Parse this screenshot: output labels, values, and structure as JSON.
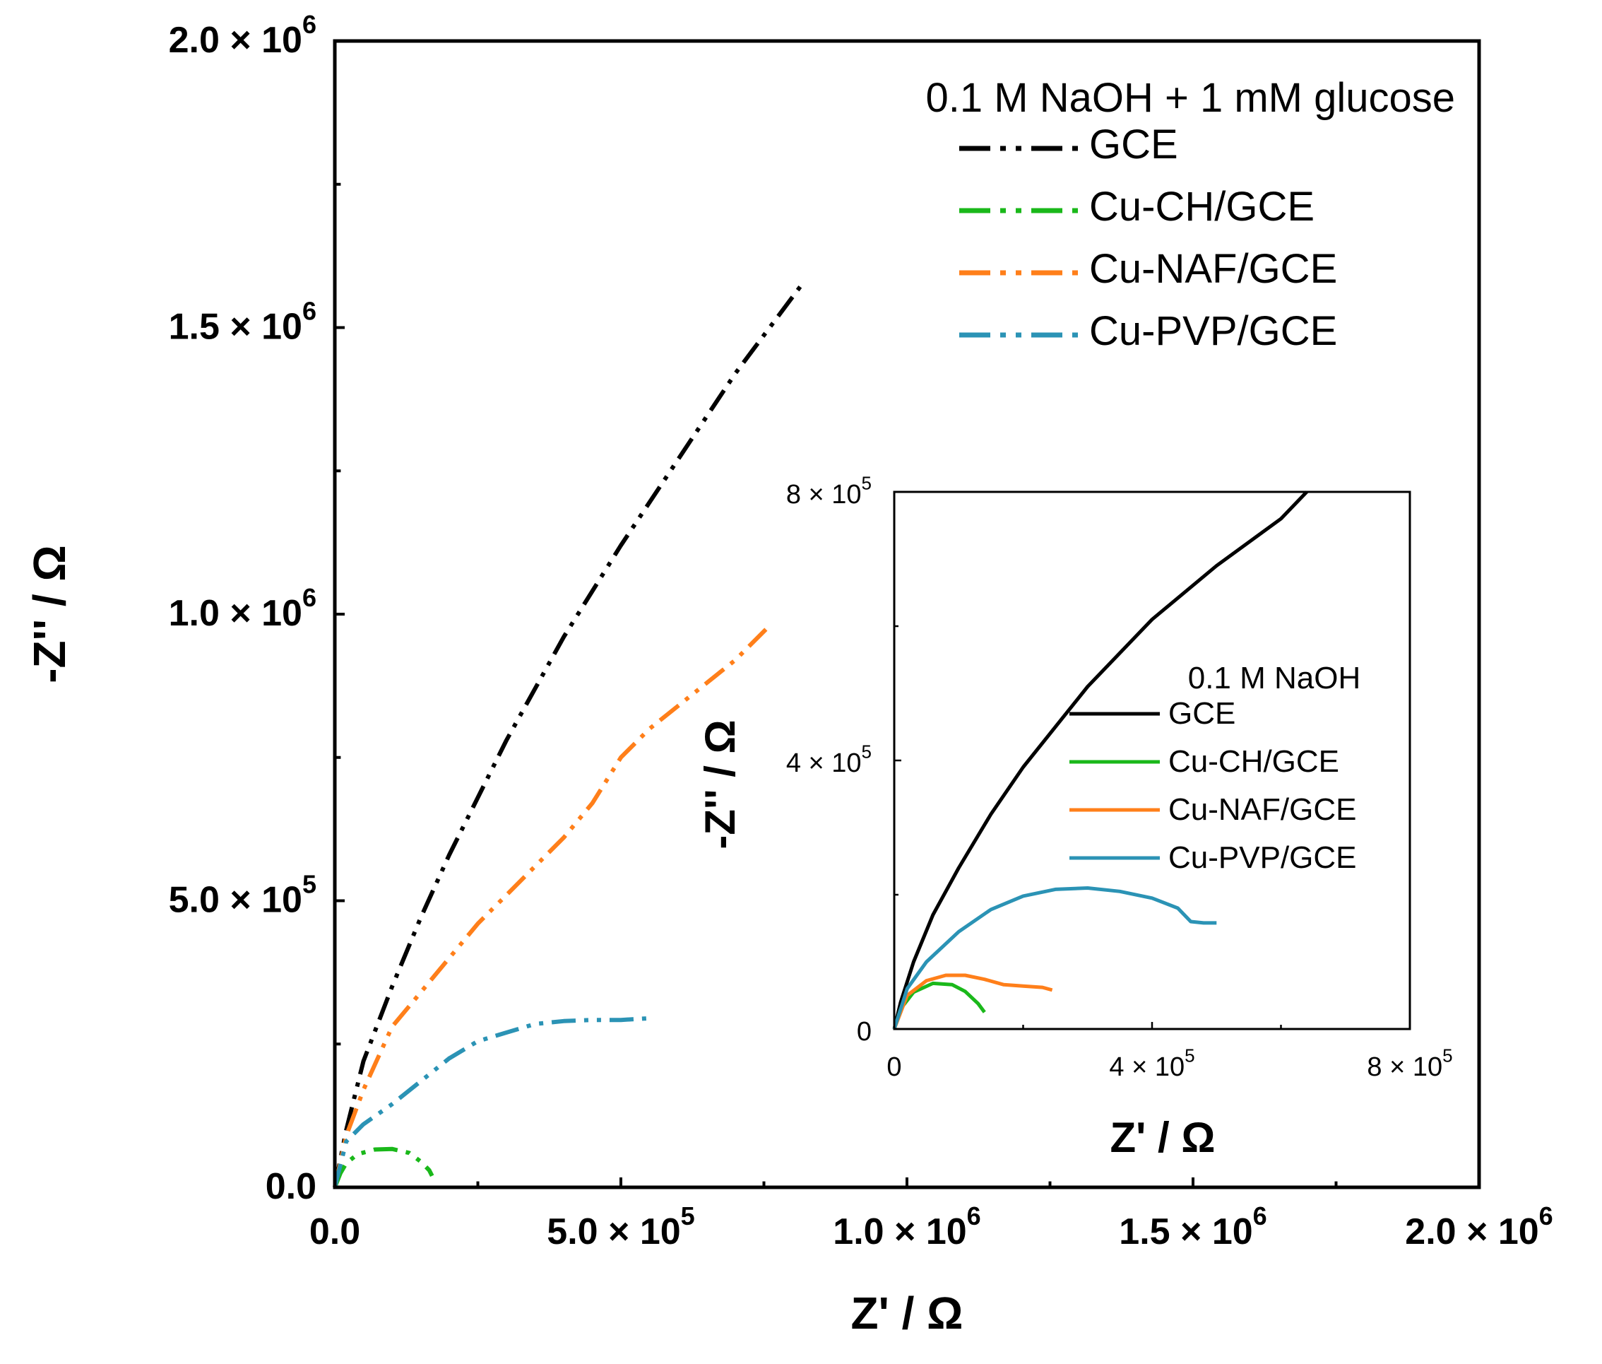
{
  "chart_data": [
    {
      "id": "main",
      "type": "line",
      "title": "",
      "xlabel": "Z' / Ω",
      "ylabel": "-Z'' / Ω",
      "xlim": [
        0,
        2000000
      ],
      "ylim": [
        0,
        2000000
      ],
      "x_ticks": [
        {
          "value": 0,
          "label": "0.0"
        },
        {
          "value": 500000,
          "label": "5.0 × 10",
          "exp": "5"
        },
        {
          "value": 1000000,
          "label": "1.0 × 10",
          "exp": "6"
        },
        {
          "value": 1500000,
          "label": "1.5 × 10",
          "exp": "6"
        },
        {
          "value": 2000000,
          "label": "2.0 × 10",
          "exp": "6"
        }
      ],
      "y_ticks": [
        {
          "value": 0,
          "label": "0.0"
        },
        {
          "value": 500000,
          "label": "5.0 × 10",
          "exp": "5"
        },
        {
          "value": 1000000,
          "label": "1.0 × 10",
          "exp": "6"
        },
        {
          "value": 1500000,
          "label": "1.5 × 10",
          "exp": "6"
        },
        {
          "value": 2000000,
          "label": "2.0 × 10",
          "exp": "6"
        }
      ],
      "legend_title": "0.1 M NaOH + 1 mM glucose",
      "legend_position": "top-right",
      "line_style": "dash-dot-dot",
      "series": [
        {
          "name": "GCE",
          "color": "#000000",
          "x": [
            0,
            20000,
            50000,
            100000,
            150000,
            200000,
            300000,
            400000,
            500000,
            600000,
            700000,
            820000
          ],
          "y": [
            0,
            100000,
            220000,
            350000,
            470000,
            580000,
            780000,
            960000,
            1120000,
            1270000,
            1420000,
            1580000
          ]
        },
        {
          "name": "Cu-CH/GCE",
          "color": "#1ab81a",
          "x": [
            0,
            10000,
            20000,
            40000,
            70000,
            100000,
            130000,
            150000,
            165000,
            170000
          ],
          "y": [
            0,
            25000,
            42000,
            58000,
            66000,
            67000,
            60000,
            45000,
            30000,
            20000
          ]
        },
        {
          "name": "Cu-NAF/GCE",
          "color": "#ff7f1a",
          "x": [
            0,
            20000,
            50000,
            100000,
            150000,
            200000,
            250000,
            300000,
            350000,
            400000,
            450000,
            500000,
            550000,
            600000,
            650000,
            700000,
            760000
          ],
          "y": [
            0,
            90000,
            170000,
            280000,
            340000,
            400000,
            460000,
            510000,
            560000,
            610000,
            670000,
            750000,
            800000,
            840000,
            880000,
            920000,
            980000
          ]
        },
        {
          "name": "Cu-PVP/GCE",
          "color": "#2b93b5",
          "x": [
            0,
            20000,
            50000,
            100000,
            150000,
            200000,
            250000,
            300000,
            350000,
            400000,
            450000,
            500000,
            550000
          ],
          "y": [
            0,
            80000,
            110000,
            145000,
            185000,
            225000,
            255000,
            270000,
            285000,
            290000,
            292000,
            292000,
            295000
          ]
        }
      ]
    },
    {
      "id": "inset",
      "type": "line",
      "title": "",
      "xlabel": "Z' / Ω",
      "ylabel": "-Z'' / Ω",
      "xlim": [
        0,
        800000
      ],
      "ylim": [
        0,
        800000
      ],
      "x_ticks": [
        {
          "value": 0,
          "label": "0"
        },
        {
          "value": 400000,
          "label": "4 × 10",
          "exp": "5"
        },
        {
          "value": 800000,
          "label": "8 × 10",
          "exp": "5"
        }
      ],
      "y_ticks": [
        {
          "value": 0,
          "label": "0"
        },
        {
          "value": 400000,
          "label": "4 × 10",
          "exp": "5"
        },
        {
          "value": 800000,
          "label": "8 × 10",
          "exp": "5"
        }
      ],
      "legend_title": "0.1 M NaOH",
      "legend_position": "center",
      "line_style": "solid",
      "series": [
        {
          "name": "GCE",
          "color": "#000000",
          "x": [
            0,
            10000,
            30000,
            60000,
            100000,
            150000,
            200000,
            300000,
            400000,
            500000,
            600000,
            640000
          ],
          "y": [
            0,
            40000,
            100000,
            170000,
            240000,
            320000,
            390000,
            510000,
            610000,
            690000,
            760000,
            800000
          ]
        },
        {
          "name": "Cu-CH/GCE",
          "color": "#1ab81a",
          "x": [
            0,
            10000,
            30000,
            60000,
            90000,
            110000,
            130000,
            140000
          ],
          "y": [
            0,
            30000,
            55000,
            68000,
            66000,
            56000,
            38000,
            25000
          ]
        },
        {
          "name": "Cu-NAF/GCE",
          "color": "#ff7f1a",
          "x": [
            0,
            20000,
            50000,
            80000,
            110000,
            140000,
            170000,
            200000,
            230000,
            245000
          ],
          "y": [
            0,
            50000,
            72000,
            80000,
            80000,
            74000,
            66000,
            64000,
            62000,
            58000
          ]
        },
        {
          "name": "Cu-PVP/GCE",
          "color": "#2b93b5",
          "x": [
            0,
            20000,
            50000,
            100000,
            150000,
            200000,
            250000,
            300000,
            350000,
            400000,
            440000,
            460000,
            480000,
            500000
          ],
          "y": [
            0,
            60000,
            100000,
            145000,
            178000,
            198000,
            208000,
            210000,
            205000,
            195000,
            180000,
            160000,
            158000,
            158000
          ]
        }
      ]
    }
  ]
}
